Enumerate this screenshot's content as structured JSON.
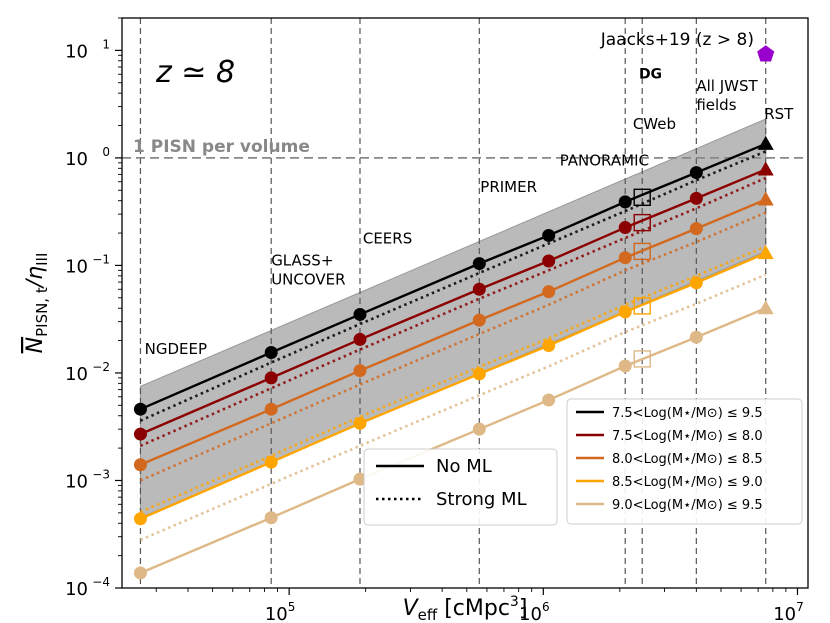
{
  "chart_data": {
    "type": "line",
    "xscale": "log",
    "yscale": "log",
    "xlim": [
      22000,
      11000000
    ],
    "ylim": [
      0.0001,
      20
    ],
    "xlabel_main": "V",
    "xlabel_sub": "eff",
    "xlabel_unit": "[cMpc",
    "xlabel_unit_sup": "3",
    "xlabel_close": "]",
    "ylabel_bar": "N",
    "ylabel_sub1": "PISN, t",
    "ylabel_slash": "/η",
    "ylabel_sub2": "III",
    "x_ticks": [
      {
        "value": 100000,
        "base": "10",
        "exp": "5"
      },
      {
        "value": 1000000,
        "base": "10",
        "exp": "6"
      },
      {
        "value": 10000000,
        "base": "10",
        "exp": "7"
      }
    ],
    "y_ticks": [
      {
        "value": 0.0001,
        "base": "10",
        "exp": "−4"
      },
      {
        "value": 0.001,
        "base": "10",
        "exp": "−3"
      },
      {
        "value": 0.01,
        "base": "10",
        "exp": "−2"
      },
      {
        "value": 0.1,
        "base": "10",
        "exp": "−1"
      },
      {
        "value": 1,
        "base": "10",
        "exp": "0"
      },
      {
        "value": 10,
        "base": "10",
        "exp": "1"
      }
    ],
    "redshift_label": "z ≃ 8",
    "reference_line": {
      "value": 1.0,
      "label": "1 PISN per volume",
      "color": "#888888"
    },
    "shaded_band": {
      "x": [
        26000,
        7500000
      ],
      "y_upper": [
        0.0075,
        2.3
      ],
      "y_lower": [
        0.00045,
        0.135
      ],
      "color": "#b3b3b3"
    },
    "surveys": [
      {
        "name": "NGDEEP",
        "v": 26000,
        "label": "NGDEEP",
        "lx": 27000,
        "ly": 0.015
      },
      {
        "name": "GLASS-UNCOVER",
        "v": 85000,
        "label": "GLASS+",
        "label2": "UNCOVER",
        "lx": 85000,
        "ly": 0.1
      },
      {
        "name": "CEERS",
        "v": 190000,
        "label": "CEERS",
        "lx": 195000,
        "ly": 0.16
      },
      {
        "name": "PRIMER",
        "v": 560000,
        "label": "PRIMER",
        "lx": 565000,
        "ly": 0.48
      },
      {
        "name": "PANORAMIC",
        "v": 2100000,
        "label": "PANORAMIC",
        "lx": 1160000,
        "ly": 0.85
      },
      {
        "name": "CWeb",
        "v": 2450000,
        "label": "CWeb",
        "lx": 2250000,
        "ly": 1.85
      },
      {
        "name": "All-JWST",
        "v": 4000000,
        "label": "All JWST",
        "label2": "fields",
        "lx": 4000000,
        "ly": 4.2
      },
      {
        "name": "RST",
        "v": 7500000,
        "label": "RST",
        "lx": 7400000,
        "ly": 2.3
      }
    ],
    "dg_label": {
      "text": "DG",
      "x": 2700000,
      "y": 5.5
    },
    "jaacks_label": {
      "text": "Jaacks+19 (z > 8)",
      "x": 4200000,
      "y": 11.0
    },
    "jaacks_point": {
      "x": 7500000,
      "y": 9.2,
      "color": "#9900cc",
      "marker": "pentagon"
    },
    "x": [
      26000,
      85000,
      190000,
      560000,
      1050000,
      2100000,
      4000000,
      7500000
    ],
    "series": [
      {
        "name": "7.5<Log(M*/M⊙)≤9.5",
        "legend_label": "7.5<Log(M⋆/M⊙) ≤ 9.5",
        "color": "#000000",
        "no_ml": [
          0.0046,
          0.0155,
          0.035,
          0.104,
          0.19,
          0.39,
          0.73,
          1.35
        ],
        "strong_ml": [
          0.0036,
          0.0125,
          0.0285,
          0.085,
          0.16,
          0.32,
          0.62,
          1.15
        ]
      },
      {
        "name": "7.5<Log(M*/M⊙)≤8.0",
        "legend_label": "7.5<Log(M⋆/M⊙) ≤ 8.0",
        "color": "#8b0000",
        "no_ml": [
          0.0027,
          0.009,
          0.0205,
          0.06,
          0.11,
          0.225,
          0.42,
          0.78
        ],
        "strong_ml": [
          0.0021,
          0.0072,
          0.0165,
          0.049,
          0.09,
          0.18,
          0.34,
          0.65
        ]
      },
      {
        "name": "8.0<Log(M*/M⊙)≤8.5",
        "legend_label": "8.0<Log(M⋆/M⊙) ≤ 8.5",
        "color": "#d2691e",
        "no_ml": [
          0.0014,
          0.0046,
          0.0105,
          0.031,
          0.057,
          0.118,
          0.22,
          0.41
        ],
        "strong_ml": [
          0.001,
          0.0034,
          0.0078,
          0.023,
          0.043,
          0.09,
          0.165,
          0.31
        ]
      },
      {
        "name": "8.5<Log(M*/M⊙)≤9.0",
        "legend_label": "8.5<Log(M⋆/M⊙) ≤ 9.0",
        "color": "#ffa500",
        "no_ml": [
          0.00044,
          0.00148,
          0.0034,
          0.0098,
          0.018,
          0.037,
          0.069,
          0.13
        ],
        "strong_ml": [
          0.00051,
          0.0017,
          0.0039,
          0.0114,
          0.021,
          0.043,
          0.08,
          0.15
        ]
      },
      {
        "name": "9.0<Log(M*/M⊙)≤9.5",
        "legend_label": "9.0<Log(M⋆/M⊙) ≤ 9.5",
        "color": "#deb887",
        "no_ml": [
          0.000138,
          0.00045,
          0.00103,
          0.003,
          0.0056,
          0.0116,
          0.0215,
          0.04
        ],
        "strong_ml": [
          0.00028,
          0.00093,
          0.0021,
          0.0062,
          0.0115,
          0.024,
          0.044,
          0.082
        ]
      }
    ],
    "open_squares": {
      "x": 2450000,
      "values": [
        0.43,
        0.25,
        0.135,
        0.042,
        0.0135
      ],
      "colors": [
        "#000000",
        "#8b0000",
        "#d2691e",
        "#ffa500",
        "#deb887"
      ]
    },
    "line_style_legend": [
      {
        "label": "No ML",
        "style": "solid"
      },
      {
        "label": "Strong ML",
        "style": "dotted"
      }
    ]
  }
}
